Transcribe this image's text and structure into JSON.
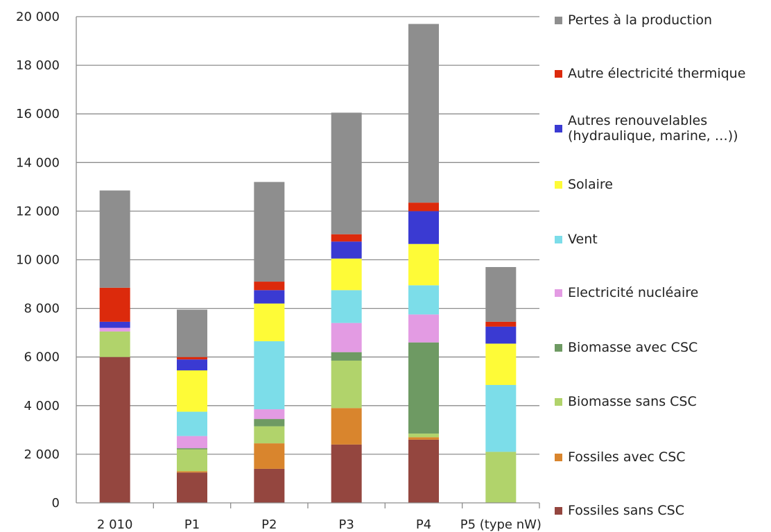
{
  "chart_data": {
    "type": "bar",
    "stacked": true,
    "title": "",
    "xlabel": "",
    "ylabel": "",
    "ylim": [
      0,
      20000
    ],
    "yticks": [
      0,
      2000,
      4000,
      6000,
      8000,
      10000,
      12000,
      14000,
      16000,
      18000,
      20000
    ],
    "ytick_labels": [
      "0",
      "2 000",
      "4 000",
      "6 000",
      "8 000",
      "10 000",
      "12 000",
      "14 000",
      "16 000",
      "18 000",
      "20 000"
    ],
    "grid": "horizontal",
    "legend_position": "right",
    "categories": [
      "2 010",
      "P1",
      "P2",
      "P3",
      "P4",
      "P5 (type nW)"
    ],
    "series": [
      {
        "name": "Fossiles sans CSC",
        "color": "#94463F",
        "values": [
          6000,
          1250,
          1400,
          2400,
          2600,
          0
        ]
      },
      {
        "name": "Fossiles avec CSC",
        "color": "#D9852D",
        "values": [
          0,
          50,
          1050,
          1500,
          100,
          0
        ]
      },
      {
        "name": "Biomasse sans CSC",
        "color": "#B1D36B",
        "values": [
          1050,
          900,
          700,
          1950,
          150,
          2100
        ]
      },
      {
        "name": "Biomasse avec CSC",
        "color": "#6E9A63",
        "values": [
          0,
          50,
          300,
          350,
          3750,
          0
        ]
      },
      {
        "name": "Electricité nucléaire",
        "color": "#E39BE3",
        "values": [
          150,
          500,
          400,
          1200,
          1150,
          0
        ]
      },
      {
        "name": "Vent",
        "color": "#7CDDE9",
        "values": [
          0,
          1000,
          2800,
          1350,
          1200,
          2750
        ]
      },
      {
        "name": "Solaire",
        "color": "#FEFB37",
        "values": [
          0,
          1700,
          1550,
          1300,
          1700,
          1700
        ]
      },
      {
        "name": "Autres renouvelables\n(hydraulique, marine, …))",
        "color": "#3A3AD2",
        "values": [
          250,
          450,
          550,
          700,
          1350,
          700
        ]
      },
      {
        "name": "Autre électricité thermique",
        "color": "#DC2A0C",
        "values": [
          1400,
          100,
          350,
          300,
          350,
          200
        ]
      },
      {
        "name": "Pertes à la production",
        "color": "#8E8E8E",
        "values": [
          4000,
          1950,
          4100,
          5000,
          7350,
          2250
        ]
      }
    ]
  }
}
